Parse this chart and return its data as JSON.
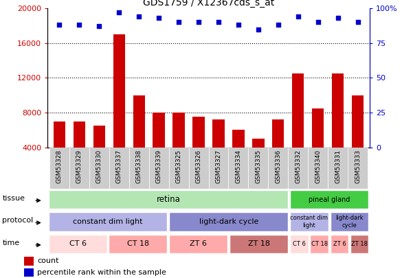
{
  "title": "GDS1759 / X12367cds_s_at",
  "samples": [
    "GSM53328",
    "GSM53329",
    "GSM53330",
    "GSM53337",
    "GSM53338",
    "GSM53339",
    "GSM53325",
    "GSM53326",
    "GSM53327",
    "GSM53334",
    "GSM53335",
    "GSM53336",
    "GSM53332",
    "GSM53340",
    "GSM53331",
    "GSM53333"
  ],
  "counts": [
    7000,
    7000,
    6500,
    17000,
    10000,
    8000,
    8000,
    7500,
    7200,
    6000,
    5000,
    7200,
    12500,
    8500,
    12500,
    10000
  ],
  "percentile_ranks": [
    88,
    88,
    87,
    97,
    94,
    93,
    90,
    90,
    90,
    88,
    85,
    88,
    94,
    90,
    93,
    90
  ],
  "bar_color": "#cc0000",
  "dot_color": "#0000cc",
  "left_yaxis_color": "#cc0000",
  "right_yaxis_color": "#0000cc",
  "ylim_left": [
    4000,
    20000
  ],
  "ylim_right": [
    0,
    100
  ],
  "left_yticks": [
    4000,
    8000,
    12000,
    16000,
    20000
  ],
  "right_yticks": [
    0,
    25,
    50,
    75,
    100
  ],
  "grid_values": [
    8000,
    12000,
    16000
  ],
  "tissue_groups": [
    {
      "label": "retina",
      "start": 0,
      "end": 12,
      "color": "#b3e6b3"
    },
    {
      "label": "pineal gland",
      "start": 12,
      "end": 16,
      "color": "#44cc44"
    }
  ],
  "protocol_groups": [
    {
      "label": "constant dim light",
      "start": 0,
      "end": 6,
      "color": "#b3b3e6"
    },
    {
      "label": "light-dark cycle",
      "start": 6,
      "end": 12,
      "color": "#8888cc"
    },
    {
      "label": "constant dim\nlight",
      "start": 12,
      "end": 14,
      "color": "#b3b3e6"
    },
    {
      "label": "light-dark\ncycle",
      "start": 14,
      "end": 16,
      "color": "#8888cc"
    }
  ],
  "time_groups": [
    {
      "label": "CT 6",
      "start": 0,
      "end": 3,
      "color": "#ffdddd"
    },
    {
      "label": "CT 18",
      "start": 3,
      "end": 6,
      "color": "#ffaaaa"
    },
    {
      "label": "ZT 6",
      "start": 6,
      "end": 9,
      "color": "#ffaaaa"
    },
    {
      "label": "ZT 18",
      "start": 9,
      "end": 12,
      "color": "#cc7777"
    },
    {
      "label": "CT 6",
      "start": 12,
      "end": 13,
      "color": "#ffdddd"
    },
    {
      "label": "CT 18",
      "start": 13,
      "end": 14,
      "color": "#ffaaaa"
    },
    {
      "label": "ZT 6",
      "start": 14,
      "end": 15,
      "color": "#ffaaaa"
    },
    {
      "label": "ZT 18",
      "start": 15,
      "end": 16,
      "color": "#cc7777"
    }
  ],
  "legend_count_color": "#cc0000",
  "legend_percentile_color": "#0000cc"
}
